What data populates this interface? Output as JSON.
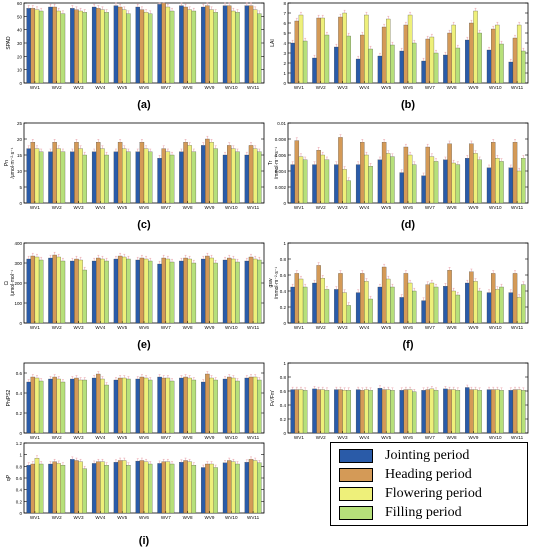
{
  "figure": {
    "legend": [
      {
        "label": "Jointing period",
        "color": "#2a5ba8"
      },
      {
        "label": "Heading period",
        "color": "#d49a57"
      },
      {
        "label": "Flowering period",
        "color": "#eef07a"
      },
      {
        "label": "Filling period",
        "color": "#b6e07a"
      }
    ]
  },
  "chart_data": [
    {
      "type": "bar",
      "panel_label": "(a)",
      "ylabel": "SPAD",
      "categories": [
        "WV1",
        "WV2",
        "WV3",
        "WV4",
        "WV5",
        "WV6",
        "WV7",
        "WV8",
        "WV9",
        "WV10",
        "WV11"
      ],
      "ylim": [
        0,
        60
      ],
      "yticks": [
        0,
        10,
        20,
        30,
        40,
        50,
        60
      ],
      "series": [
        {
          "name": "Jointing period",
          "values": [
            56,
            57,
            56,
            57,
            58,
            57,
            59,
            58,
            57,
            58,
            58
          ]
        },
        {
          "name": "Heading period",
          "values": [
            56,
            57,
            55,
            56,
            57,
            55,
            60,
            57,
            58,
            58,
            58
          ]
        },
        {
          "name": "Flowering period",
          "values": [
            55,
            54,
            54,
            55,
            55,
            53,
            57,
            55,
            55,
            54,
            55
          ]
        },
        {
          "name": "Filling period",
          "values": [
            54,
            52,
            53,
            53,
            52,
            52,
            54,
            54,
            53,
            53,
            52
          ]
        }
      ]
    },
    {
      "type": "bar",
      "panel_label": "(b)",
      "ylabel": "LAI",
      "categories": [
        "WV1",
        "WV2",
        "WV3",
        "WV4",
        "WV5",
        "WV6",
        "WV7",
        "WV8",
        "WV9",
        "WV10",
        "WV11"
      ],
      "ylim": [
        0,
        8
      ],
      "yticks": [
        0,
        1,
        2,
        3,
        4,
        5,
        6,
        7,
        8
      ],
      "series": [
        {
          "name": "Jointing period",
          "values": [
            4.0,
            2.5,
            3.6,
            2.4,
            2.7,
            3.2,
            2.2,
            2.8,
            4.3,
            3.3,
            2.1
          ]
        },
        {
          "name": "Heading period",
          "values": [
            6.2,
            6.5,
            6.6,
            4.8,
            5.6,
            5.8,
            4.4,
            5.0,
            6.0,
            5.4,
            4.5
          ]
        },
        {
          "name": "Flowering period",
          "values": [
            6.8,
            6.5,
            7.0,
            6.8,
            6.4,
            6.8,
            4.6,
            5.8,
            7.2,
            5.8,
            5.8
          ]
        },
        {
          "name": "Filling period",
          "values": [
            4.2,
            4.8,
            4.7,
            3.4,
            3.8,
            4.0,
            3.0,
            3.5,
            5.0,
            3.9,
            3.2
          ]
        }
      ]
    },
    {
      "type": "bar",
      "panel_label": "(c)",
      "ylabel": "Pn\n/μmol·m⁻²·s⁻¹",
      "categories": [
        "WV1",
        "WV2",
        "WV3",
        "WV4",
        "WV5",
        "WV6",
        "WV7",
        "WV8",
        "WV9",
        "WV10",
        "WV11"
      ],
      "ylim": [
        0,
        25
      ],
      "yticks": [
        0,
        5,
        10,
        15,
        20,
        25
      ],
      "series": [
        {
          "name": "Jointing period",
          "values": [
            17,
            16,
            16,
            16,
            16,
            16,
            14,
            16,
            18,
            15,
            15
          ]
        },
        {
          "name": "Heading period",
          "values": [
            19,
            19,
            19,
            19,
            19,
            19,
            17,
            19,
            20,
            18,
            18
          ]
        },
        {
          "name": "Flowering period",
          "values": [
            17,
            17,
            17,
            17,
            17,
            17,
            16,
            18,
            19,
            17,
            17
          ]
        },
        {
          "name": "Filling period",
          "values": [
            16,
            16,
            15,
            15,
            16,
            16,
            15,
            16,
            17,
            16,
            16
          ]
        }
      ]
    },
    {
      "type": "bar",
      "panel_label": "(d)",
      "ylabel": "Tr\n/mmol·m⁻²·s⁻¹",
      "categories": [
        "WV1",
        "WV2",
        "WV3",
        "WV4",
        "WV5",
        "WV6",
        "WV7",
        "WV8",
        "WV9",
        "WV10",
        "WV11"
      ],
      "ylim": [
        0,
        0.01
      ],
      "yticks": [
        0,
        0.002,
        0.004,
        0.006,
        0.008,
        0.01
      ],
      "series": [
        {
          "name": "Jointing period",
          "values": [
            0.0048,
            0.0048,
            0.0048,
            0.0048,
            0.0054,
            0.0038,
            0.0034,
            0.0054,
            0.0056,
            0.0044,
            0.0044
          ]
        },
        {
          "name": "Heading period",
          "values": [
            0.0078,
            0.0066,
            0.0082,
            0.0076,
            0.0076,
            0.007,
            0.007,
            0.0074,
            0.0074,
            0.0076,
            0.0076
          ]
        },
        {
          "name": "Flowering period",
          "values": [
            0.0058,
            0.006,
            0.0042,
            0.006,
            0.0062,
            0.006,
            0.0058,
            0.005,
            0.0062,
            0.0056,
            0.004
          ]
        },
        {
          "name": "Filling period",
          "values": [
            0.0054,
            0.0054,
            0.0028,
            0.0046,
            0.0058,
            0.0048,
            0.0052,
            0.0048,
            0.0054,
            0.0052,
            0.0056
          ]
        }
      ]
    },
    {
      "type": "bar",
      "panel_label": "(e)",
      "ylabel": "Ci\n/μmol·mol⁻¹",
      "categories": [
        "WV1",
        "WV2",
        "WV3",
        "WV4",
        "WV5",
        "WV6",
        "WV7",
        "WV8",
        "WV9",
        "WV10",
        "WV11"
      ],
      "ylim": [
        0,
        400
      ],
      "yticks": [
        0,
        100,
        200,
        300,
        400
      ],
      "series": [
        {
          "name": "Jointing period",
          "values": [
            320,
            325,
            310,
            310,
            320,
            315,
            295,
            310,
            320,
            315,
            310
          ]
        },
        {
          "name": "Heading period",
          "values": [
            335,
            340,
            320,
            325,
            335,
            325,
            325,
            325,
            335,
            325,
            330
          ]
        },
        {
          "name": "Flowering period",
          "values": [
            330,
            330,
            315,
            320,
            330,
            320,
            320,
            320,
            325,
            320,
            320
          ]
        },
        {
          "name": "Filling period",
          "values": [
            315,
            310,
            265,
            310,
            320,
            310,
            305,
            300,
            300,
            305,
            315
          ]
        }
      ]
    },
    {
      "type": "bar",
      "panel_label": "(f)",
      "ylabel": "gsw\n/mmol·m⁻²·s⁻¹",
      "categories": [
        "WV1",
        "WV2",
        "WV3",
        "WV4",
        "WV5",
        "WV6",
        "WV7",
        "WV8",
        "WV9",
        "WV10",
        "WV11"
      ],
      "ylim": [
        0,
        1.0
      ],
      "yticks": [
        0,
        0.2,
        0.4,
        0.6,
        0.8,
        1.0
      ],
      "series": [
        {
          "name": "Jointing period",
          "values": [
            0.45,
            0.5,
            0.42,
            0.38,
            0.45,
            0.32,
            0.28,
            0.46,
            0.5,
            0.38,
            0.38
          ]
        },
        {
          "name": "Heading period",
          "values": [
            0.62,
            0.72,
            0.62,
            0.62,
            0.7,
            0.62,
            0.48,
            0.66,
            0.64,
            0.62,
            0.62
          ]
        },
        {
          "name": "Flowering period",
          "values": [
            0.55,
            0.56,
            0.38,
            0.52,
            0.55,
            0.5,
            0.5,
            0.4,
            0.52,
            0.42,
            0.32
          ]
        },
        {
          "name": "Filling period",
          "values": [
            0.45,
            0.42,
            0.22,
            0.3,
            0.45,
            0.4,
            0.45,
            0.35,
            0.4,
            0.45,
            0.48
          ]
        }
      ]
    },
    {
      "type": "bar",
      "panel_label": "(g)",
      "ylabel": "PhiPS2",
      "categories": [
        "WV1",
        "WV2",
        "WV3",
        "WV4",
        "WV5",
        "WV6",
        "WV7",
        "WV8",
        "WV9",
        "WV10",
        "WV11"
      ],
      "ylim": [
        0,
        0.7
      ],
      "yticks": [
        0,
        0.2,
        0.4,
        0.6
      ],
      "series": [
        {
          "name": "Jointing period",
          "values": [
            0.51,
            0.54,
            0.54,
            0.55,
            0.53,
            0.54,
            0.56,
            0.55,
            0.51,
            0.54,
            0.55
          ]
        },
        {
          "name": "Heading period",
          "values": [
            0.56,
            0.56,
            0.55,
            0.59,
            0.55,
            0.56,
            0.55,
            0.56,
            0.59,
            0.56,
            0.56
          ]
        },
        {
          "name": "Flowering period",
          "values": [
            0.55,
            0.54,
            0.53,
            0.54,
            0.55,
            0.55,
            0.55,
            0.55,
            0.55,
            0.55,
            0.56
          ]
        },
        {
          "name": "Filling period",
          "values": [
            0.52,
            0.51,
            0.53,
            0.48,
            0.54,
            0.53,
            0.52,
            0.53,
            0.53,
            0.52,
            0.53
          ]
        }
      ]
    },
    {
      "type": "bar",
      "panel_label": "(h)",
      "ylabel": "Fv'/Fm'",
      "categories": [
        "WV1",
        "WV2",
        "WV3",
        "WV4",
        "WV5",
        "WV6",
        "WV7",
        "WV8",
        "WV9",
        "WV10",
        "WV11"
      ],
      "ylim": [
        0,
        1.0
      ],
      "yticks": [
        0,
        0.2,
        0.4,
        0.6,
        0.8,
        1.0
      ],
      "series": [
        {
          "name": "Jointing period",
          "values": [
            0.62,
            0.63,
            0.62,
            0.62,
            0.64,
            0.61,
            0.61,
            0.63,
            0.65,
            0.62,
            0.61
          ]
        },
        {
          "name": "Heading period",
          "values": [
            0.62,
            0.62,
            0.62,
            0.61,
            0.62,
            0.62,
            0.62,
            0.62,
            0.62,
            0.62,
            0.62
          ]
        },
        {
          "name": "Flowering period",
          "values": [
            0.62,
            0.62,
            0.61,
            0.62,
            0.62,
            0.62,
            0.63,
            0.62,
            0.62,
            0.62,
            0.62
          ]
        },
        {
          "name": "Filling period",
          "values": [
            0.61,
            0.61,
            0.61,
            0.61,
            0.61,
            0.59,
            0.61,
            0.61,
            0.61,
            0.61,
            0.61
          ]
        }
      ]
    },
    {
      "type": "bar",
      "panel_label": "(i)",
      "ylabel": "qP",
      "categories": [
        "WV1",
        "WV2",
        "WV3",
        "WV4",
        "WV5",
        "WV6",
        "WV7",
        "WV8",
        "WV9",
        "WV10",
        "WV11"
      ],
      "ylim": [
        0,
        1.2
      ],
      "yticks": [
        0,
        0.2,
        0.4,
        0.6,
        0.8,
        1.0,
        1.2
      ],
      "series": [
        {
          "name": "Jointing period",
          "values": [
            0.82,
            0.84,
            0.92,
            0.85,
            0.87,
            0.89,
            0.85,
            0.87,
            0.78,
            0.86,
            0.87
          ]
        },
        {
          "name": "Heading period",
          "values": [
            0.84,
            0.88,
            0.9,
            0.88,
            0.9,
            0.9,
            0.88,
            0.9,
            0.84,
            0.9,
            0.92
          ]
        },
        {
          "name": "Flowering period",
          "values": [
            0.94,
            0.85,
            0.88,
            0.88,
            0.9,
            0.88,
            0.88,
            0.88,
            0.84,
            0.88,
            0.9
          ]
        },
        {
          "name": "Filling period",
          "values": [
            0.84,
            0.82,
            0.76,
            0.82,
            0.82,
            0.84,
            0.84,
            0.82,
            0.78,
            0.84,
            0.86
          ]
        }
      ]
    }
  ]
}
